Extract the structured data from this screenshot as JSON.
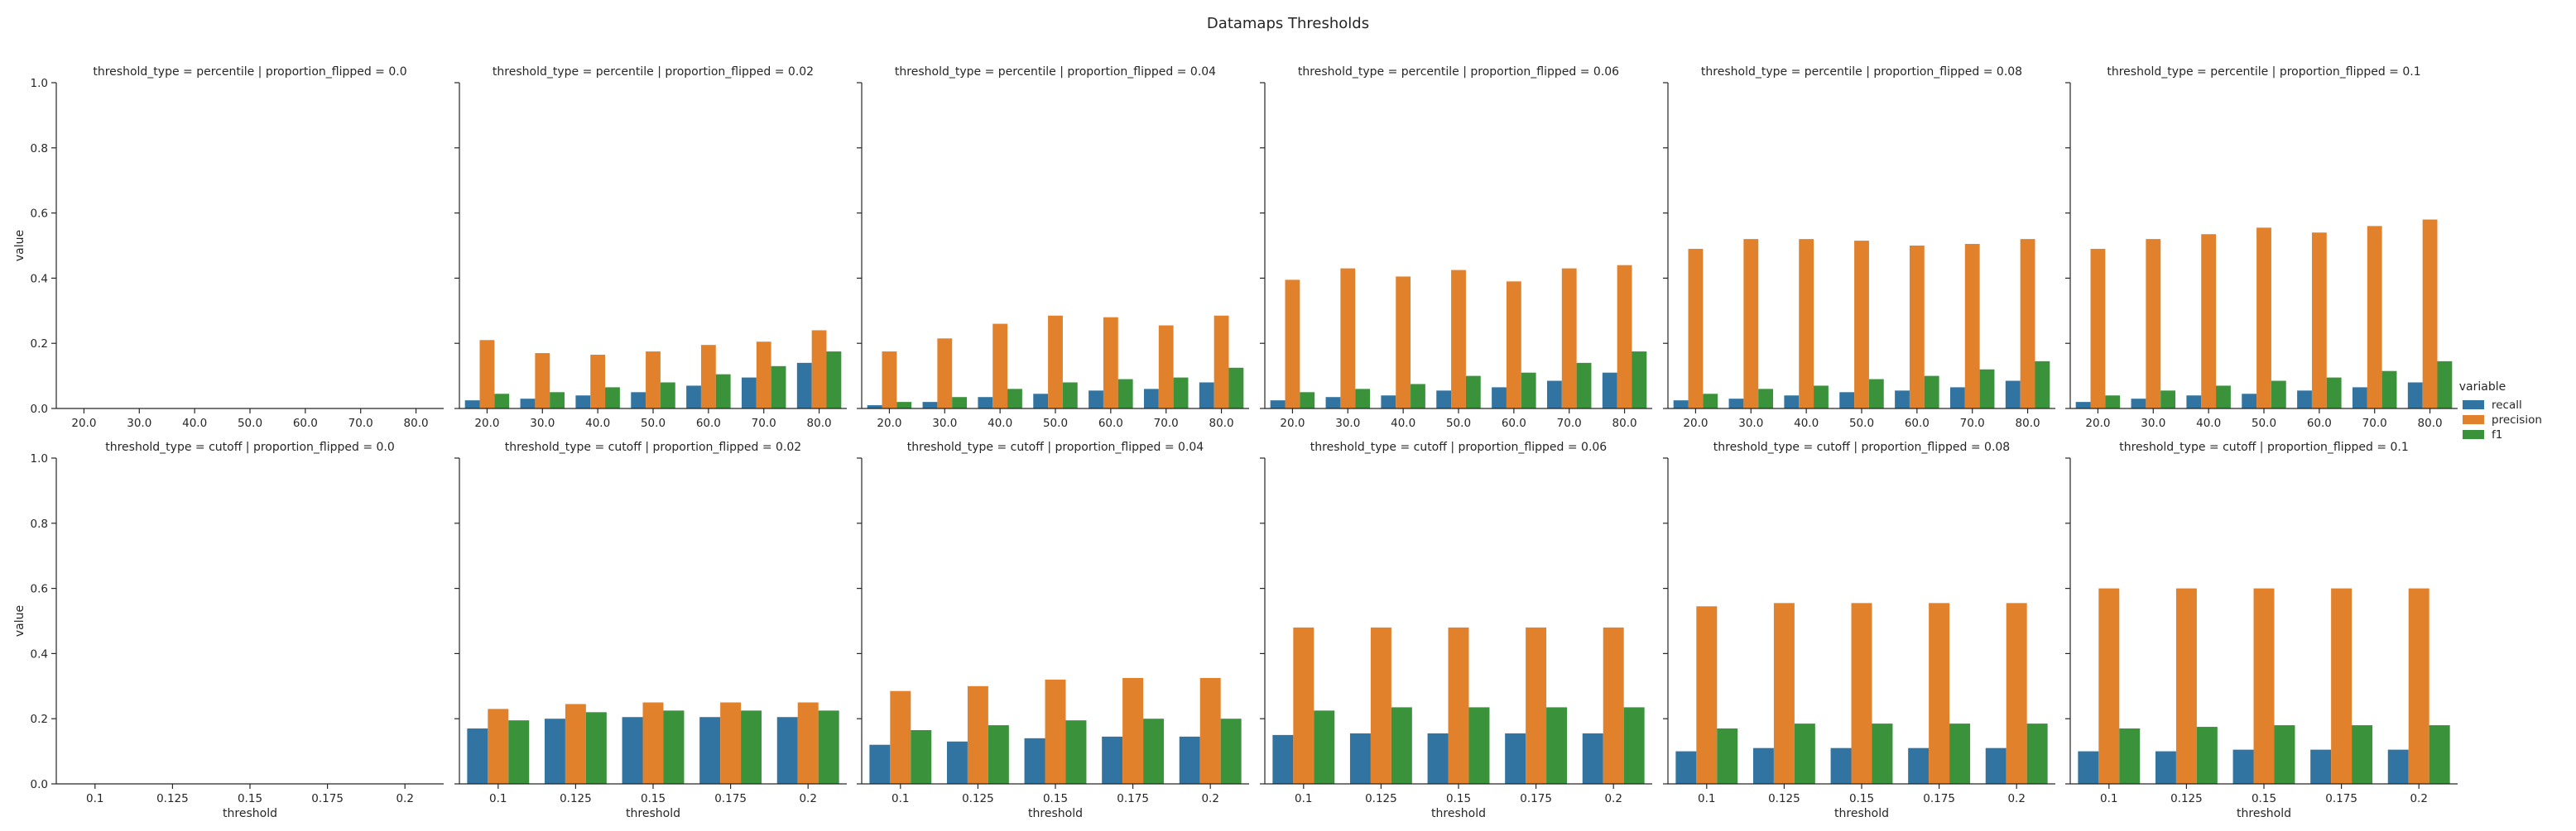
{
  "chart_data": {
    "type": "bar",
    "title": "Datamaps Thresholds",
    "ylabel": "value",
    "ylim": [
      0,
      1.0
    ],
    "yticks": [
      "0.0",
      "0.2",
      "0.4",
      "0.6",
      "0.8",
      "1.0"
    ],
    "legend": {
      "title": "variable",
      "placement": "right",
      "entries": [
        {
          "name": "recall",
          "color": "#3274a1"
        },
        {
          "name": "precision",
          "color": "#e1812c"
        },
        {
          "name": "f1",
          "color": "#3a923a"
        }
      ]
    },
    "rows": [
      {
        "xlabel": "",
        "categories": [
          "20.0",
          "30.0",
          "40.0",
          "50.0",
          "60.0",
          "70.0",
          "80.0"
        ],
        "panels": [
          {
            "title": "threshold_type = percentile | proportion_flipped = 0.0",
            "recall": [
              0,
              0,
              0,
              0,
              0,
              0,
              0
            ],
            "precision": [
              0,
              0,
              0,
              0,
              0,
              0,
              0
            ],
            "f1": [
              0,
              0,
              0,
              0,
              0,
              0,
              0
            ]
          },
          {
            "title": "threshold_type = percentile | proportion_flipped = 0.02",
            "recall": [
              0.025,
              0.03,
              0.04,
              0.05,
              0.07,
              0.095,
              0.14
            ],
            "precision": [
              0.21,
              0.17,
              0.165,
              0.175,
              0.195,
              0.205,
              0.24
            ],
            "f1": [
              0.045,
              0.05,
              0.065,
              0.08,
              0.105,
              0.13,
              0.175
            ]
          },
          {
            "title": "threshold_type = percentile | proportion_flipped = 0.04",
            "recall": [
              0.01,
              0.02,
              0.035,
              0.045,
              0.055,
              0.06,
              0.08
            ],
            "precision": [
              0.175,
              0.215,
              0.26,
              0.285,
              0.28,
              0.255,
              0.285
            ],
            "f1": [
              0.02,
              0.035,
              0.06,
              0.08,
              0.09,
              0.095,
              0.125
            ]
          },
          {
            "title": "threshold_type = percentile | proportion_flipped = 0.06",
            "recall": [
              0.025,
              0.035,
              0.04,
              0.055,
              0.065,
              0.085,
              0.11
            ],
            "precision": [
              0.395,
              0.43,
              0.405,
              0.425,
              0.39,
              0.43,
              0.44
            ],
            "f1": [
              0.05,
              0.06,
              0.075,
              0.1,
              0.11,
              0.14,
              0.175
            ]
          },
          {
            "title": "threshold_type = percentile | proportion_flipped = 0.08",
            "recall": [
              0.025,
              0.03,
              0.04,
              0.05,
              0.055,
              0.065,
              0.085
            ],
            "precision": [
              0.49,
              0.52,
              0.52,
              0.515,
              0.5,
              0.505,
              0.52
            ],
            "f1": [
              0.045,
              0.06,
              0.07,
              0.09,
              0.1,
              0.12,
              0.145
            ]
          },
          {
            "title": "threshold_type = percentile | proportion_flipped = 0.1",
            "recall": [
              0.02,
              0.03,
              0.04,
              0.045,
              0.055,
              0.065,
              0.08
            ],
            "precision": [
              0.49,
              0.52,
              0.535,
              0.555,
              0.54,
              0.56,
              0.58
            ],
            "f1": [
              0.04,
              0.055,
              0.07,
              0.085,
              0.095,
              0.115,
              0.145
            ]
          }
        ]
      },
      {
        "xlabel": "threshold",
        "categories": [
          "0.1",
          "0.125",
          "0.15",
          "0.175",
          "0.2"
        ],
        "panels": [
          {
            "title": "threshold_type = cutoff | proportion_flipped = 0.0",
            "recall": [
              0,
              0,
              0,
              0,
              0
            ],
            "precision": [
              0,
              0,
              0,
              0,
              0
            ],
            "f1": [
              0,
              0,
              0,
              0,
              0
            ]
          },
          {
            "title": "threshold_type = cutoff | proportion_flipped = 0.02",
            "recall": [
              0.17,
              0.2,
              0.205,
              0.205,
              0.205
            ],
            "precision": [
              0.23,
              0.245,
              0.25,
              0.25,
              0.25
            ],
            "f1": [
              0.195,
              0.22,
              0.225,
              0.225,
              0.225
            ]
          },
          {
            "title": "threshold_type = cutoff | proportion_flipped = 0.04",
            "recall": [
              0.12,
              0.13,
              0.14,
              0.145,
              0.145
            ],
            "precision": [
              0.285,
              0.3,
              0.32,
              0.325,
              0.325
            ],
            "f1": [
              0.165,
              0.18,
              0.195,
              0.2,
              0.2
            ]
          },
          {
            "title": "threshold_type = cutoff | proportion_flipped = 0.06",
            "recall": [
              0.15,
              0.155,
              0.155,
              0.155,
              0.155
            ],
            "precision": [
              0.48,
              0.48,
              0.48,
              0.48,
              0.48
            ],
            "f1": [
              0.225,
              0.235,
              0.235,
              0.235,
              0.235
            ]
          },
          {
            "title": "threshold_type = cutoff | proportion_flipped = 0.08",
            "recall": [
              0.1,
              0.11,
              0.11,
              0.11,
              0.11
            ],
            "precision": [
              0.545,
              0.555,
              0.555,
              0.555,
              0.555
            ],
            "f1": [
              0.17,
              0.185,
              0.185,
              0.185,
              0.185
            ]
          },
          {
            "title": "threshold_type = cutoff | proportion_flipped = 0.1",
            "recall": [
              0.1,
              0.1,
              0.105,
              0.105,
              0.105
            ],
            "precision": [
              0.6,
              0.6,
              0.6,
              0.6,
              0.6
            ],
            "f1": [
              0.17,
              0.175,
              0.18,
              0.18,
              0.18
            ]
          }
        ]
      }
    ]
  }
}
